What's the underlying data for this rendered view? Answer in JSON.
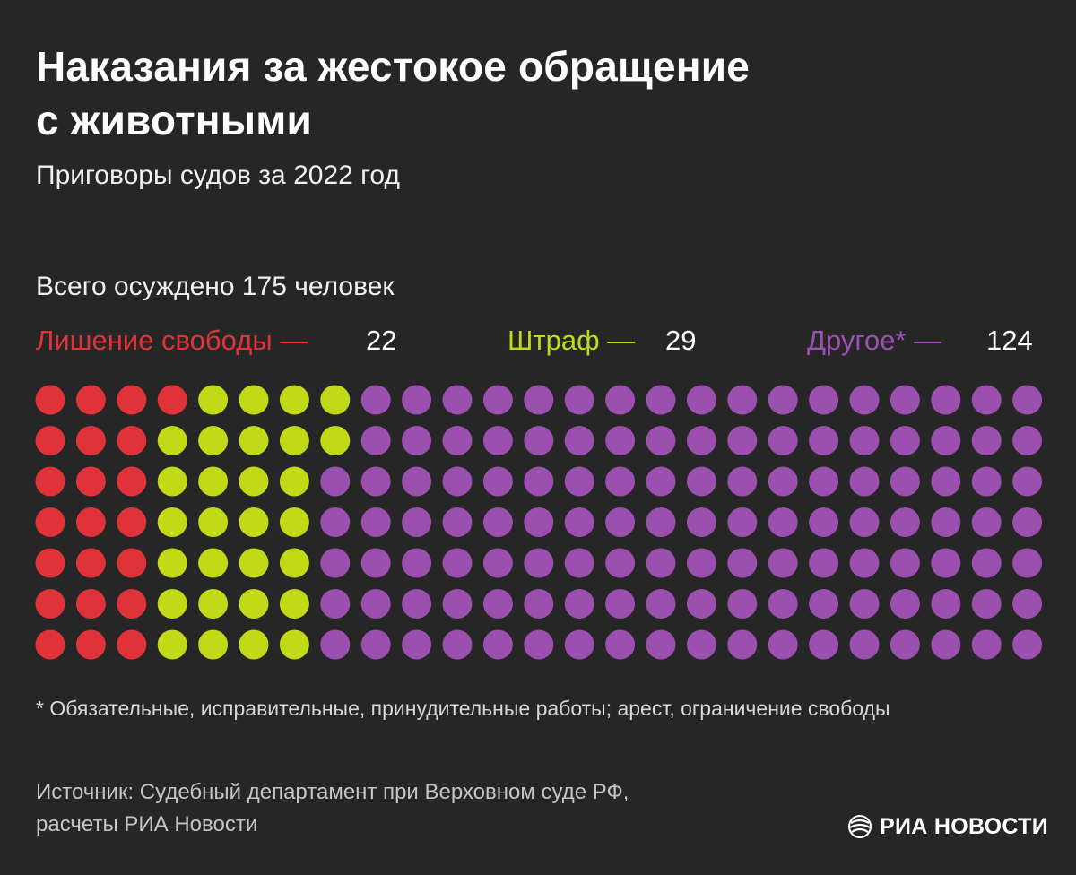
{
  "title_line1": "Наказания за жестокое обращение",
  "title_line2": "с животными",
  "subtitle": "Приговоры судов за 2022 год",
  "total_label": "Всего осуждено 175 человек",
  "legend": [
    {
      "label": "Лишение свободы —",
      "value": "22",
      "color": "#e03339"
    },
    {
      "label": "Штраф —",
      "value": "29",
      "color": "#c2d918"
    },
    {
      "label": "Другое* —",
      "value": "124",
      "color": "#9b4fae"
    }
  ],
  "footnote": "* Обязательные, исправительные, принудительные работы; арест, ограничение свободы",
  "source_line1": "Источник: Судебный департамент при Верховном суде РФ,",
  "source_line2": "расчеты РИА Новости",
  "logo_text": "РИА НОВОСТИ",
  "logo_icon": "ria-globe-icon",
  "chart_data": {
    "type": "waffle",
    "title": "Наказания за жестокое обращение с животными",
    "subtitle": "Приговоры судов за 2022 год",
    "total": 175,
    "rows": 7,
    "columns": 25,
    "fill_order": "column-major, top to bottom",
    "categories": [
      "Лишение свободы",
      "Штраф",
      "Другое*"
    ],
    "values": [
      22,
      29,
      124
    ],
    "colors": [
      "#e03339",
      "#c2d918",
      "#9b4fae"
    ]
  }
}
